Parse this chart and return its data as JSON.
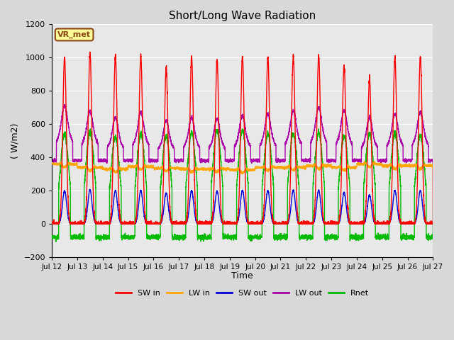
{
  "title": "Short/Long Wave Radiation",
  "ylabel": "( W/m2)",
  "xlabel": "Time",
  "ylim": [
    -200,
    1200
  ],
  "yticks": [
    -200,
    0,
    200,
    400,
    600,
    800,
    1000,
    1200
  ],
  "xtick_labels": [
    "Jul 12",
    "Jul 13",
    "Jul 14",
    "Jul 15",
    "Jul 16",
    "Jul 17",
    "Jul 18",
    "Jul 19",
    "Jul 20",
    "Jul 21",
    "Jul 22",
    "Jul 23",
    "Jul 24",
    "Jul 25",
    "Jul 26",
    "Jul 27"
  ],
  "station_label": "VR_met",
  "bg_color": "#d8d8d8",
  "plot_bg_color": "#e8e8e8",
  "grid_color": "#ffffff",
  "colors": {
    "SW_in": "#ff0000",
    "LW_in": "#ffa500",
    "SW_out": "#0000dd",
    "LW_out": "#aa00aa",
    "Rnet": "#00bb00"
  },
  "legend_labels": [
    "SW in",
    "LW in",
    "SW out",
    "LW out",
    "Rnet"
  ],
  "days": 15,
  "pts_per_day": 288
}
